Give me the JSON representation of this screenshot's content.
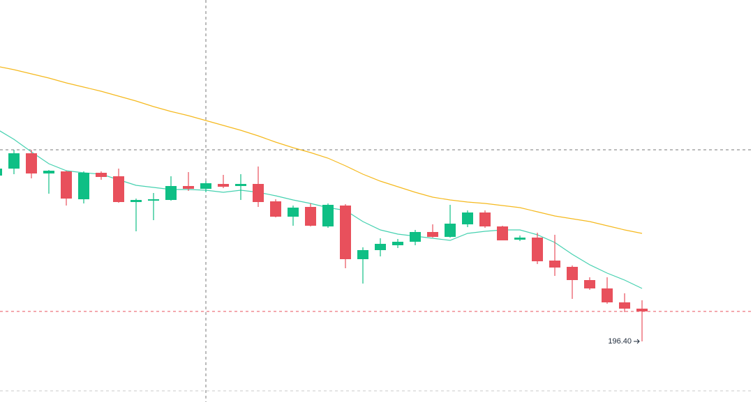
{
  "chart_data": {
    "type": "candlestick",
    "categories": [
      null,
      null,
      null,
      null,
      null,
      null,
      null,
      null,
      null,
      null,
      null,
      null,
      null,
      null,
      null,
      null,
      null,
      null,
      null,
      null,
      null,
      null,
      null,
      null,
      null,
      null,
      null,
      null,
      null,
      null,
      null,
      null,
      null,
      null,
      null,
      null,
      null,
      null
    ],
    "open": [
      208.3,
      208.8,
      209.9,
      208.45,
      208.6,
      206.6,
      208.5,
      208.25,
      206.4,
      206.5,
      206.55,
      207.55,
      207.35,
      207.7,
      207.55,
      207.7,
      206.45,
      205.35,
      206.05,
      204.65,
      206.15,
      202.3,
      202.95,
      203.3,
      203.55,
      204.25,
      203.9,
      204.8,
      205.65,
      204.65,
      203.7,
      203.85,
      202.2,
      201.75,
      200.8,
      200.2,
      199.2,
      198.75
    ],
    "high": [
      208.9,
      210.15,
      210.15,
      208.7,
      208.65,
      208.6,
      208.6,
      208.8,
      206.65,
      207.05,
      208.25,
      208.55,
      207.9,
      208.35,
      208.4,
      208.95,
      206.6,
      206.15,
      206.3,
      206.3,
      206.25,
      203.15,
      203.8,
      203.75,
      204.4,
      204.8,
      206.2,
      205.8,
      205.8,
      204.7,
      204.0,
      204.2,
      204.05,
      201.85,
      201.0,
      201.0,
      199.85,
      199.35
    ],
    "low": [
      208.2,
      208.4,
      208.1,
      207.0,
      206.15,
      206.3,
      208.0,
      206.35,
      204.3,
      205.1,
      206.5,
      207.2,
      207.1,
      207.4,
      206.55,
      206.05,
      205.3,
      204.7,
      204.65,
      204.55,
      201.65,
      200.55,
      202.5,
      203.1,
      203.3,
      203.85,
      203.85,
      204.6,
      204.55,
      203.65,
      203.6,
      201.95,
      201.1,
      199.45,
      200.1,
      199.1,
      198.5,
      196.4
    ],
    "close": [
      208.8,
      209.9,
      208.45,
      208.65,
      206.65,
      208.5,
      208.2,
      206.4,
      206.55,
      206.6,
      207.55,
      207.35,
      207.75,
      207.5,
      207.7,
      206.4,
      205.35,
      206.0,
      204.7,
      206.2,
      202.3,
      202.95,
      203.4,
      203.55,
      204.25,
      203.9,
      204.85,
      205.65,
      204.65,
      203.65,
      203.85,
      202.15,
      201.7,
      200.8,
      200.2,
      199.2,
      198.75,
      198.55
    ],
    "up_color": "#0fbf85",
    "down_color": "#e8505c",
    "lines": [
      {
        "color": "#46d1b0",
        "values": [
          211.65,
          210.9,
          210.0,
          209.15,
          208.65,
          208.5,
          208.4,
          208.0,
          207.6,
          207.45,
          207.3,
          207.3,
          207.25,
          207.1,
          207.25,
          207.1,
          206.85,
          206.55,
          206.3,
          206.0,
          205.8,
          205.0,
          204.4,
          204.1,
          203.95,
          203.8,
          203.65,
          204.15,
          204.3,
          204.4,
          204.4,
          204.05,
          203.5,
          202.65,
          201.9,
          201.3,
          200.8,
          200.2
        ]
      },
      {
        "color": "#f5b91e",
        "values": [
          216.15,
          215.9,
          215.6,
          215.3,
          214.95,
          214.65,
          214.35,
          214.0,
          213.65,
          213.25,
          212.9,
          212.6,
          212.25,
          211.9,
          211.55,
          211.15,
          210.7,
          210.3,
          209.95,
          209.55,
          209.0,
          208.4,
          207.9,
          207.5,
          207.1,
          206.75,
          206.55,
          206.4,
          206.3,
          206.15,
          206.0,
          205.7,
          205.4,
          205.2,
          205.0,
          204.7,
          204.4,
          204.15
        ]
      }
    ],
    "ylim": [
      192.05,
      220.9
    ],
    "low_label": "196.40",
    "last_price_line": true,
    "crosshair": {
      "index": 12,
      "value": 210.15
    }
  }
}
